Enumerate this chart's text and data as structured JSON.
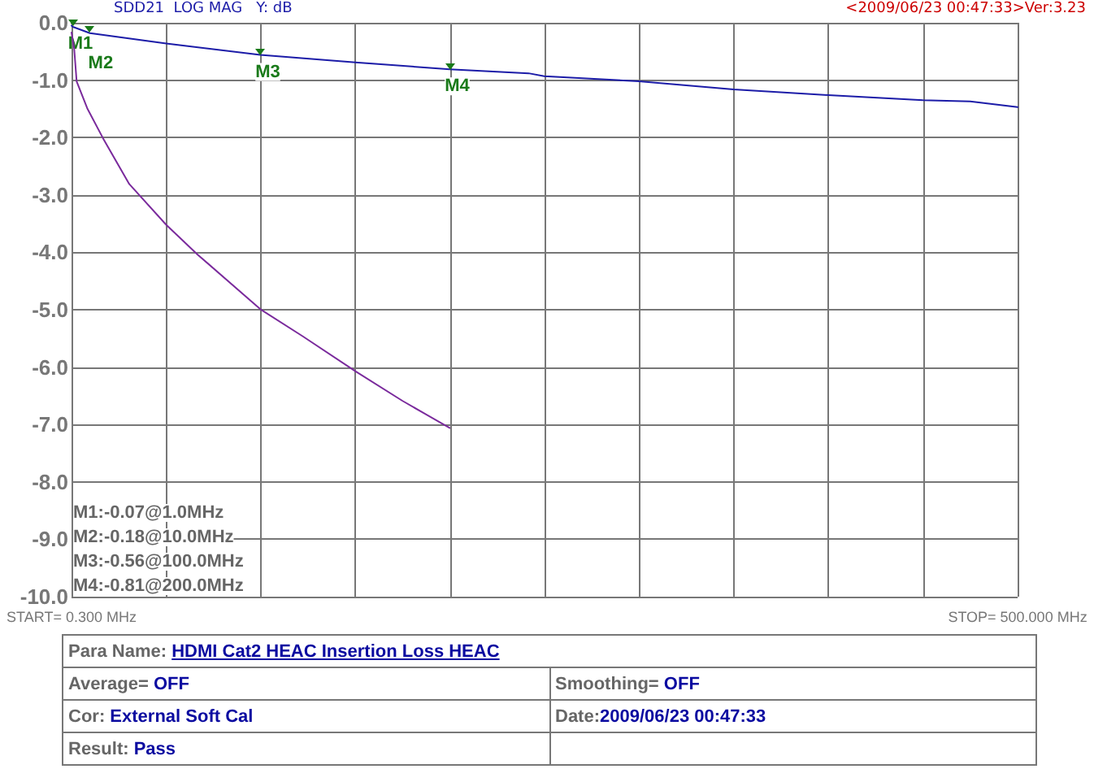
{
  "chart_data": {
    "type": "line",
    "title": "SDD21  LOG MAG   Y: dB",
    "x": [
      0.3,
      1,
      10,
      50.3,
      100,
      150.2,
      200,
      241.7,
      250,
      300,
      350,
      400,
      450,
      475,
      500
    ],
    "series": [
      {
        "color": "#1c1ca8",
        "values": [
          -0.05,
          -0.07,
          -0.18,
          -0.36,
          -0.56,
          -0.69,
          -0.81,
          -0.88,
          -0.93,
          -1.02,
          -1.16,
          -1.26,
          -1.35,
          -1.37,
          -1.47
        ]
      },
      {
        "color": "#7a2a9c",
        "x": [
          0.3,
          1.7,
          3.0,
          8.6,
          16.9,
          30.8,
          50.3,
          66.9,
          100,
          122.3,
          150.2,
          175.2,
          200
        ],
        "values": [
          -0.17,
          -0.45,
          -1.02,
          -1.49,
          -2.01,
          -2.81,
          -3.52,
          -4.04,
          -4.99,
          -5.46,
          -6.07,
          -6.59,
          -7.06
        ]
      }
    ],
    "xlim": [
      0.3,
      500
    ],
    "xticks": [
      {
        "value": 0.3,
        "label": "START= 0.300 MHz"
      },
      {
        "value": 50.27,
        "label": null
      },
      {
        "value": 100.24,
        "label": null
      },
      {
        "value": 150.21,
        "label": null
      },
      {
        "value": 200.18,
        "label": null
      },
      {
        "value": 250.15,
        "label": null
      },
      {
        "value": 300.12,
        "label": null
      },
      {
        "value": 350.09,
        "label": null
      },
      {
        "value": 400.06,
        "label": null
      },
      {
        "value": 450.03,
        "label": null
      },
      {
        "value": 500,
        "label": "STOP= 500.000 MHz"
      }
    ],
    "ylim": [
      -10,
      0
    ],
    "yticks": [
      {
        "value": 0,
        "label": "0.0"
      },
      {
        "value": -1,
        "label": "-1.0"
      },
      {
        "value": -2,
        "label": "-2.0"
      },
      {
        "value": -3,
        "label": "-3.0"
      },
      {
        "value": -4,
        "label": "-4.0"
      },
      {
        "value": -5,
        "label": "-5.0"
      },
      {
        "value": -6,
        "label": "-6.0"
      },
      {
        "value": -7,
        "label": "-7.0"
      },
      {
        "value": -8,
        "label": "-8.0"
      },
      {
        "value": -9,
        "label": "-9.0"
      },
      {
        "value": -10,
        "label": "-10.0"
      }
    ],
    "grid": true,
    "marker": "none",
    "line_style": "solid",
    "annotations": [
      "<2009/06/23 00:47:33>Ver:3.23",
      "M1:-0.07@1.0MHz",
      "M2:-0.18@10.0MHz",
      "M3:-0.56@100.0MHz",
      "M4:-0.81@200.0MHz",
      {
        "text": "M1",
        "x": 1,
        "y": -0.07
      },
      {
        "text": "M2",
        "x": 10,
        "y": -0.18
      },
      {
        "text": "M3",
        "x": 100,
        "y": -0.56
      },
      {
        "text": "M4",
        "x": 200,
        "y": -0.81
      },
      "Para Name: HDMI Cat2 HEAC Insertion Loss HEAC",
      "Average= OFF",
      "Smoothing= OFF",
      "Cor: External Soft Cal",
      "Date:2009/06/23 00:47:33",
      "Result: Pass"
    ]
  }
}
